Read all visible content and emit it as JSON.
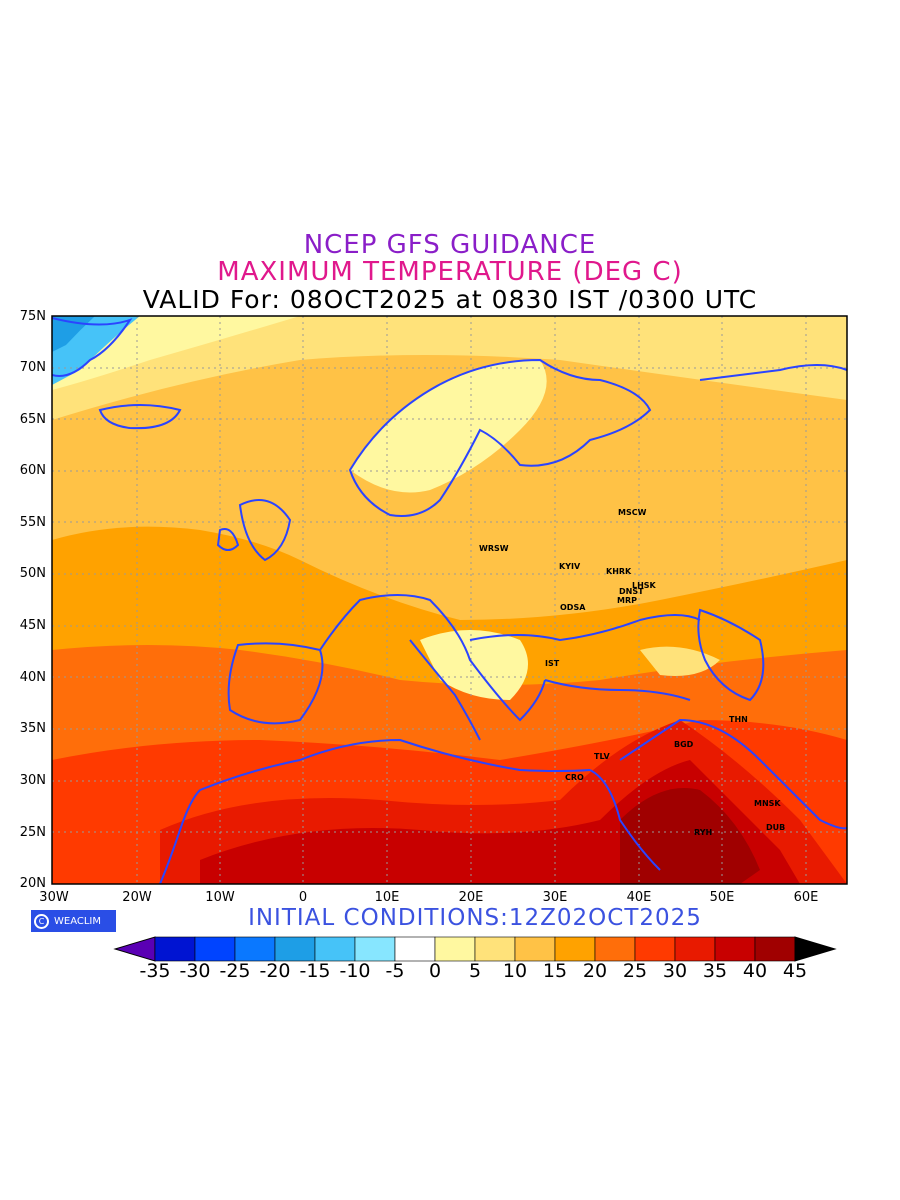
{
  "titles": {
    "line1": "NCEP GFS GUIDANCE",
    "line2": "MAXIMUM TEMPERATURE (DEG C)",
    "line3": "VALID For: 08OCT2025 at 0830 IST /0300 UTC"
  },
  "colors": {
    "line1": "#8a1ec8",
    "line2": "#e0188c",
    "border": "#2b44ff",
    "initial": "#3b52e0"
  },
  "lat_labels": [
    "75N",
    "70N",
    "65N",
    "60N",
    "55N",
    "50N",
    "45N",
    "40N",
    "35N",
    "30N",
    "25N",
    "20N"
  ],
  "lon_labels": [
    "30W",
    "20W",
    "10W",
    "0",
    "10E",
    "20E",
    "30E",
    "40E",
    "50E",
    "60E"
  ],
  "cities": [
    "MSCW",
    "WRSW",
    "KYIV",
    "KHRK",
    "LHSK",
    "DNST",
    "MRP",
    "ODSA",
    "IST",
    "THN",
    "BGD",
    "TLV",
    "CRO",
    "MNSK",
    "DUB",
    "RYH"
  ],
  "logo": {
    "icon": "copyright-circle-icon",
    "text": "WEACLIM"
  },
  "initial_conditions": "INITIAL CONDITIONS:12Z02OCT2025",
  "colorbar": {
    "labels": [
      "-35",
      "-30",
      "-25",
      "-20",
      "-15",
      "-10",
      "-5",
      "0",
      "5",
      "10",
      "15",
      "20",
      "25",
      "30",
      "35",
      "40",
      "45"
    ],
    "colors": [
      "#5a00b4",
      "#0014d2",
      "#0044ff",
      "#0a78ff",
      "#1e9ee6",
      "#46c3f8",
      "#87e6ff",
      "#ffffff",
      "#fff8a0",
      "#ffe27a",
      "#ffc246",
      "#ffa200",
      "#ff6e0a",
      "#ff3a00",
      "#e81a00",
      "#c80000",
      "#a00000",
      "#000000"
    ]
  }
}
